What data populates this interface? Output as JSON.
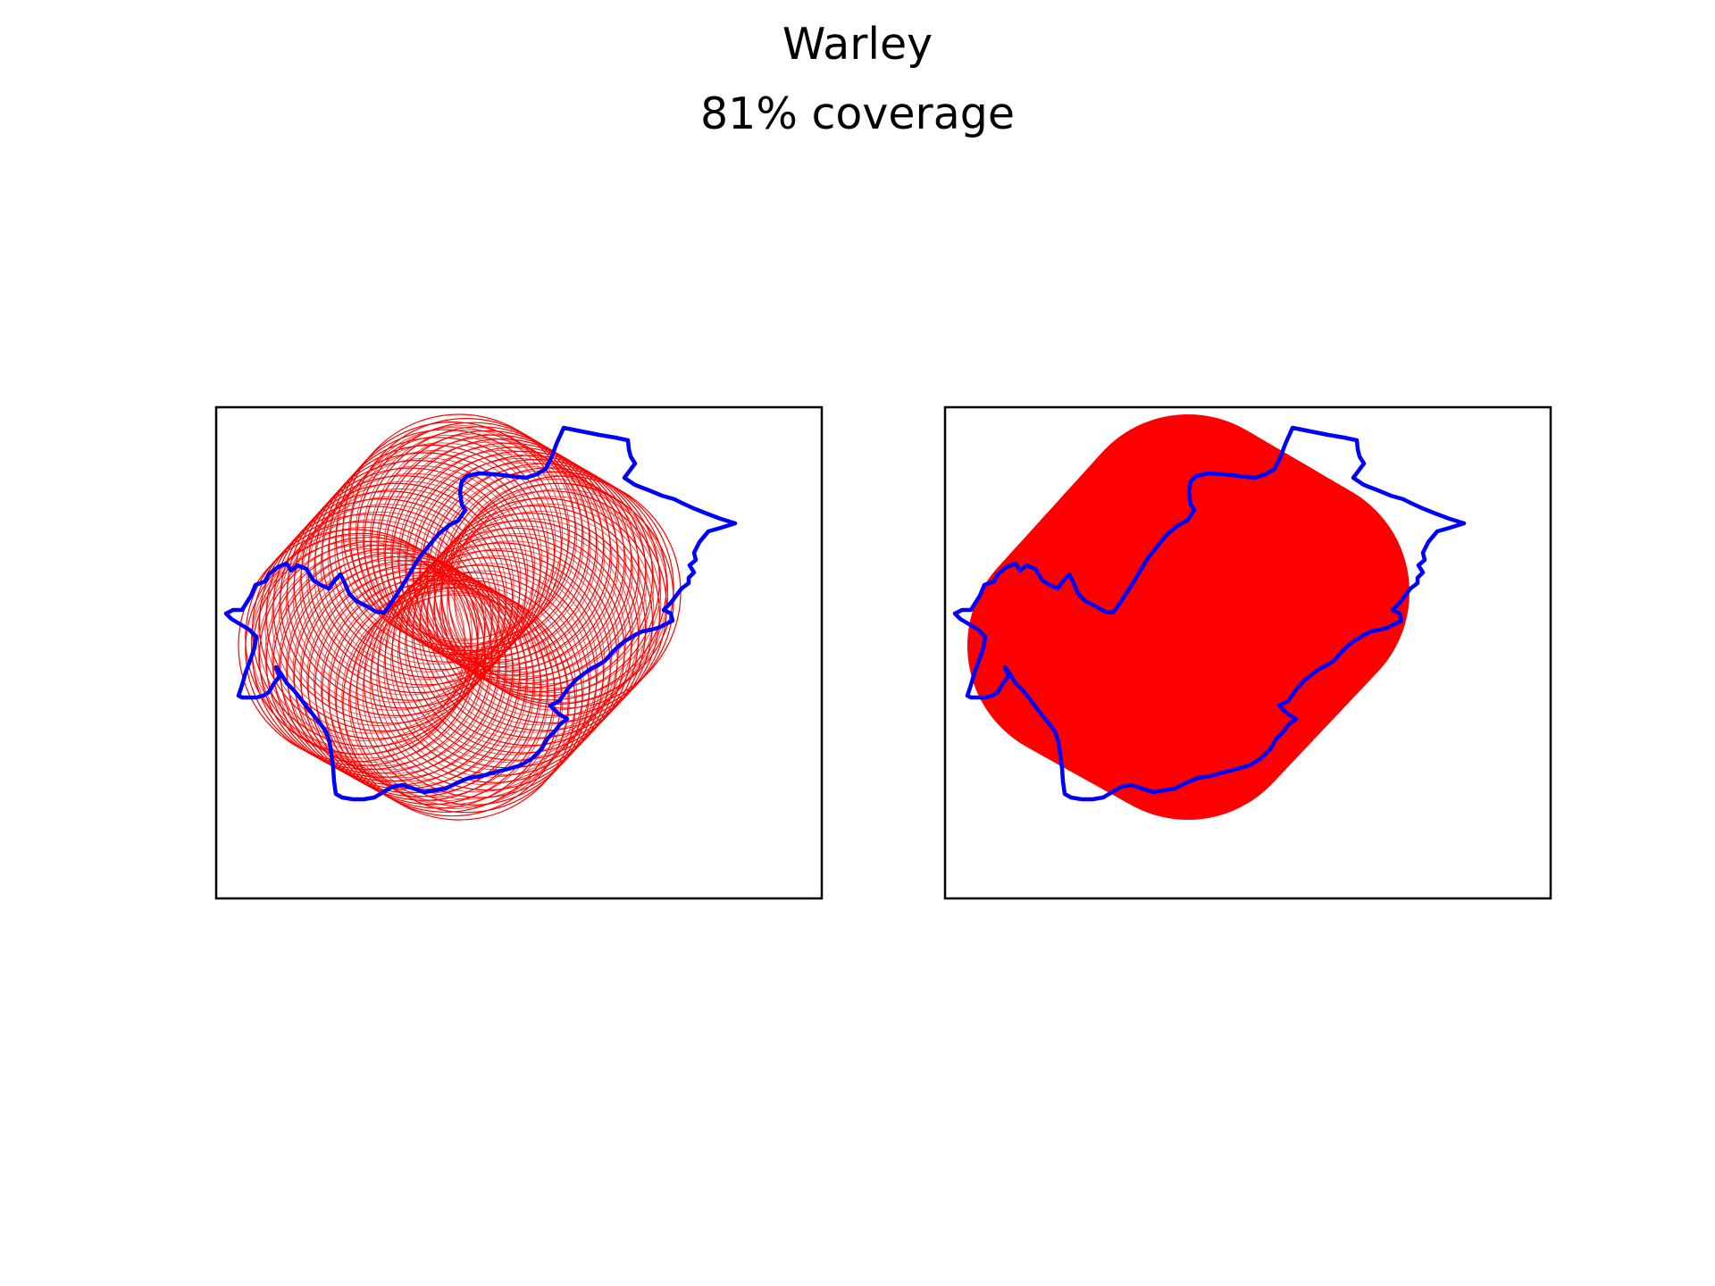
{
  "figure": {
    "title": "Warley",
    "subtitle": "81% coverage"
  },
  "colors": {
    "boundary": "#0000ff",
    "coverage": "#ff0000",
    "frame": "#000000",
    "background": "#ffffff"
  },
  "panels": [
    {
      "name": "individual-coverage-circles",
      "style": "outline-rings",
      "ring_count": 60
    },
    {
      "name": "merged-coverage-area",
      "style": "solid-fill"
    }
  ],
  "coverage_path": {
    "point_count": 4
  }
}
